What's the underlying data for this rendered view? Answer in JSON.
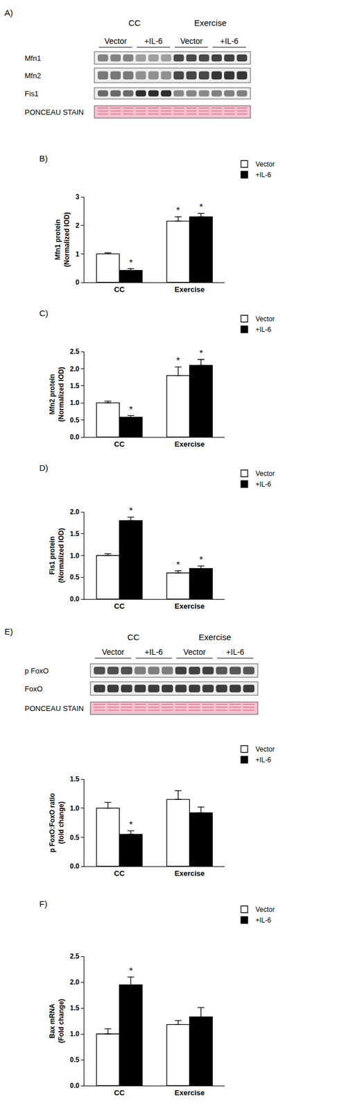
{
  "blots": [
    {
      "panel": "A)",
      "groups": [
        "CC",
        "Exercise"
      ],
      "conditions": [
        "Vector",
        "+IL-6",
        "Vector",
        "+IL-6"
      ],
      "rows": [
        "Mfn1",
        "Mfn2",
        "Fis1",
        "PONCEAU STAIN"
      ]
    },
    {
      "panel": "E)",
      "groups": [
        "CC",
        "Exercise"
      ],
      "conditions": [
        "Vector",
        "+IL-6",
        "Vector",
        "+IL-6"
      ],
      "rows": [
        "p FoxO",
        "FoxO",
        "PONCEAU STAIN"
      ]
    }
  ],
  "chart_data": [
    {
      "panel": "B)",
      "type": "bar",
      "categories": [
        "CC",
        "Exercise"
      ],
      "y_label": "Mfn1 protein\n(Normalized IOD)",
      "legend": "top right",
      "ylim": [
        0,
        3
      ],
      "yticks": [
        0,
        1,
        2,
        3
      ],
      "series": [
        {
          "name": "Vector",
          "color": "#ffffff",
          "values": [
            1.0,
            2.15
          ],
          "errors": [
            0.04,
            0.15
          ],
          "annotations": [
            null,
            "*"
          ]
        },
        {
          "name": "+IL-6",
          "color": "#000000",
          "values": [
            0.42,
            2.3
          ],
          "errors": [
            0.06,
            0.12
          ],
          "annotations": [
            "*",
            "*"
          ]
        }
      ]
    },
    {
      "panel": "C)",
      "type": "bar",
      "categories": [
        "CC",
        "Exercise"
      ],
      "y_label": "Mfn2 protein\n(Normalized IOD)",
      "legend": "top right",
      "ylim": [
        0,
        2.5
      ],
      "yticks": [
        {
          "value": 0,
          "label": "0.0"
        },
        0.5,
        {
          "value": 1,
          "label": "1.0"
        },
        1.5,
        {
          "value": 2,
          "label": "2.0"
        },
        2.5
      ],
      "series": [
        {
          "name": "Vector",
          "color": "#ffffff",
          "values": [
            1.0,
            1.8
          ],
          "errors": [
            0.05,
            0.25
          ],
          "annotations": [
            null,
            "*"
          ]
        },
        {
          "name": "+IL-6",
          "color": "#000000",
          "values": [
            0.58,
            2.1
          ],
          "errors": [
            0.05,
            0.17
          ],
          "annotations": [
            "*",
            "*"
          ]
        }
      ]
    },
    {
      "panel": "D)",
      "type": "bar",
      "categories": [
        "CC",
        "Exercise"
      ],
      "y_label": "Fis1 protein\n(Normalized IOD)",
      "legend": "top right",
      "ylim": [
        0,
        2
      ],
      "yticks": [
        {
          "value": 0,
          "label": "0.0"
        },
        0.5,
        {
          "value": 1,
          "label": "1.0"
        },
        1.5,
        {
          "value": 2,
          "label": "2.0"
        }
      ],
      "series": [
        {
          "name": "Vector",
          "color": "#ffffff",
          "values": [
            1.0,
            0.6
          ],
          "errors": [
            0.04,
            0.05
          ],
          "annotations": [
            null,
            "*"
          ]
        },
        {
          "name": "+IL-6",
          "color": "#000000",
          "values": [
            1.8,
            0.7
          ],
          "errors": [
            0.08,
            0.06
          ],
          "annotations": [
            "*",
            "*"
          ]
        }
      ]
    },
    {
      "type": "bar",
      "categories": [
        "CC",
        "Exercise"
      ],
      "y_label": "p FoxO:FoxO ratio\n(fold change)",
      "legend": "top right",
      "ylim": [
        0,
        1.5
      ],
      "yticks": [
        {
          "value": 0,
          "label": "0.0"
        },
        0.5,
        {
          "value": 1,
          "label": "1.0"
        },
        1.5
      ],
      "series": [
        {
          "name": "Vector",
          "color": "#ffffff",
          "values": [
            1.0,
            1.15
          ],
          "errors": [
            0.1,
            0.15
          ],
          "annotations": [
            null,
            null
          ]
        },
        {
          "name": "+IL-6",
          "color": "#000000",
          "values": [
            0.55,
            0.92
          ],
          "errors": [
            0.06,
            0.1
          ],
          "annotations": [
            "*",
            null
          ]
        }
      ]
    },
    {
      "panel": "F)",
      "type": "bar",
      "categories": [
        "CC",
        "Exercise"
      ],
      "y_label": "Bax mRNA\n(Fold change)",
      "legend": "top right",
      "ylim": [
        0,
        2.5
      ],
      "yticks": [
        {
          "value": 0,
          "label": "0.0"
        },
        0.5,
        {
          "value": 1,
          "label": "1.0"
        },
        1.5,
        {
          "value": 2,
          "label": "2.0"
        },
        2.5
      ],
      "series": [
        {
          "name": "Vector",
          "color": "#ffffff",
          "values": [
            1.0,
            1.18
          ],
          "errors": [
            0.1,
            0.08
          ],
          "annotations": [
            null,
            null
          ]
        },
        {
          "name": "+IL-6",
          "color": "#000000",
          "values": [
            1.95,
            1.33
          ],
          "errors": [
            0.15,
            0.18
          ],
          "annotations": [
            "*",
            null
          ]
        }
      ]
    }
  ]
}
